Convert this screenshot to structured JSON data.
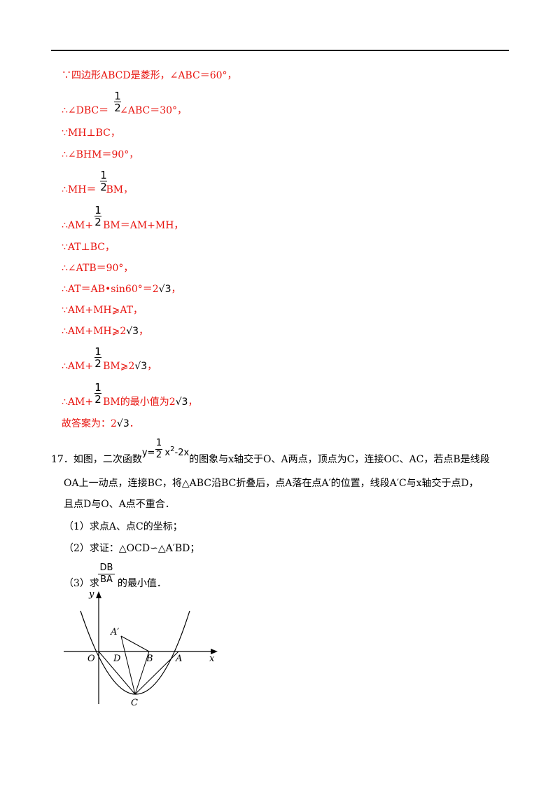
{
  "solution": {
    "l1": "∵四边形ABCD是菱形，∠ABC＝60°，",
    "l2a": "∴∠DBC＝",
    "l2b": "∠ABC＝30°，",
    "l3": "∵MH⊥BC，",
    "l4": "∴∠BHM＝90°，",
    "l5a": "∴MH＝",
    "l5b": "BM，",
    "l6a": "∴AM+",
    "l6b": "BM＝AM+MH，",
    "l7": "∵AT⊥BC，",
    "l8": "∴∠ATB＝90°，",
    "l9a": "∴AT＝AB•sin60°＝2",
    "l9b": "，",
    "l10": "∵AM+MH⩾AT，",
    "l11a": "∴AM+MH⩾2",
    "l11b": "，",
    "l12a": "∴AM+",
    "l12b": "BM⩾2",
    "l12c": "，",
    "l13a": "∴AM+",
    "l13b": "BM的最小值为2",
    "l13c": "，",
    "l14a": "故答案为：2",
    "l14b": "．",
    "sqrt3": "√3",
    "half_num": "1",
    "half_den": "2"
  },
  "problem": {
    "number": "17．",
    "p1a": "如图，二次函数",
    "eq_y": "y=",
    "eq_x": "x",
    "eq_exp": "2",
    "eq_tail": "-2x",
    "p1b": "的图象与x轴交于O、A两点，顶点为C，连接OC、AC，若点B是线段",
    "p2": "OA上一动点，连接BC，将△ABC沿BC折叠后，点A落在点A′的位置，线段A′C与x轴交于点D，",
    "p3": "且点D与O、A点不重合．",
    "s1": "（1）求点A、点C的坐标；",
    "s2": "（2）求证：△OCD∽△A′BD；",
    "s3a": "（3）求",
    "s3_num": "DB",
    "s3_den": "BA",
    "s3b": "的最小值．"
  },
  "figure": {
    "y_axis": "y",
    "x_axis": "x",
    "O": "O",
    "D": "D",
    "B": "B",
    "A": "A",
    "A_prime": "A′",
    "C": "C"
  },
  "colors": {
    "solution": "#e8140f",
    "text": "#000000"
  }
}
